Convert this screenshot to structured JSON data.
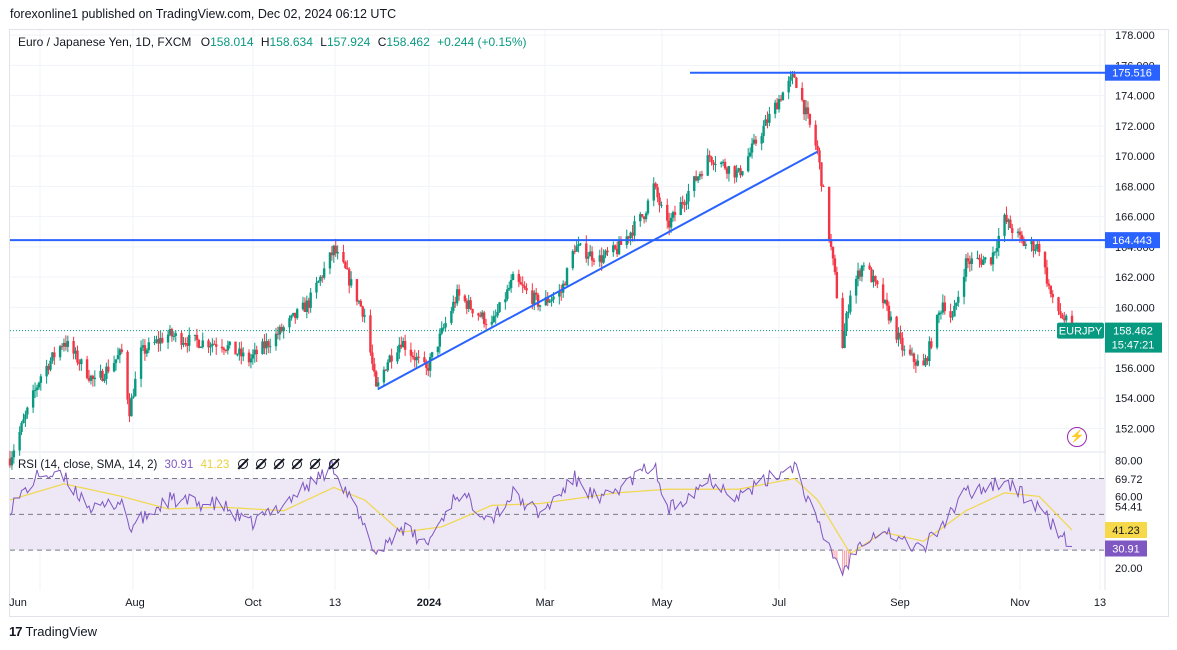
{
  "publisher": "forexonline1 published on TradingView.com, Dec 02, 2024 06:12 UTC",
  "legend": {
    "symbol": "Euro / Japanese Yen, 1D, FXCM",
    "o_label": "O",
    "o": "158.014",
    "h_label": "H",
    "h": "158.634",
    "l_label": "L",
    "l": "157.924",
    "c_label": "C",
    "c": "158.462",
    "change": "+0.244 (+0.15%)"
  },
  "rsi_legend": {
    "label": "RSI",
    "params": "14, close, SMA, 14, 2",
    "rsi": "30.91",
    "sma": "41.23"
  },
  "branding": "TradingView",
  "colors": {
    "up": "#089981",
    "down": "#f23645",
    "hline": "#2962ff",
    "rsi": "#7e57c2",
    "rsi_ma": "#f0d84a",
    "rsi_band": "#ede7f6"
  },
  "chart_data": {
    "type": "candlestick",
    "symbol_tag": "EURJPY",
    "price_axis": {
      "ticks": [
        "178.000",
        "176.000",
        "174.000",
        "172.000",
        "170.000",
        "168.000",
        "166.000",
        "164.000",
        "162.000",
        "160.000",
        "158.000",
        "156.000",
        "154.000",
        "152.000"
      ],
      "range": [
        150.5,
        179
      ]
    },
    "time_axis": [
      "Jun",
      "Aug",
      "Oct",
      "13",
      "2024",
      "Mar",
      "May",
      "Jul",
      "Sep",
      "Nov",
      "13"
    ],
    "horizontal_lines": [
      {
        "value": 175.516,
        "label": "175.516"
      },
      {
        "value": 164.443,
        "label": "164.443"
      }
    ],
    "trendline": [
      {
        "date": "2023-12-08",
        "value": 154.6
      },
      {
        "date": "2024-07-23",
        "value": 170.3
      }
    ],
    "last_price": {
      "value": 158.462,
      "label": "158.462",
      "countdown": "15:47:21"
    },
    "close_anchors": [
      {
        "date": "2023-05-31",
        "close": 150.0
      },
      {
        "date": "2023-06-16",
        "close": 155.5
      },
      {
        "date": "2023-06-28",
        "close": 157.8
      },
      {
        "date": "2023-07-14",
        "close": 155.0
      },
      {
        "date": "2023-07-28",
        "close": 157.0
      },
      {
        "date": "2023-08-01",
        "close": 153.2
      },
      {
        "date": "2023-08-07",
        "close": 157.0
      },
      {
        "date": "2023-08-21",
        "close": 158.2
      },
      {
        "date": "2023-09-01",
        "close": 157.8
      },
      {
        "date": "2023-09-18",
        "close": 157.6
      },
      {
        "date": "2023-10-02",
        "close": 156.5
      },
      {
        "date": "2023-10-20",
        "close": 158.6
      },
      {
        "date": "2023-11-02",
        "close": 160.3
      },
      {
        "date": "2023-11-15",
        "close": 163.8
      },
      {
        "date": "2023-11-21",
        "close": 162.4
      },
      {
        "date": "2023-12-01",
        "close": 159.5
      },
      {
        "date": "2023-12-07",
        "close": 154.5
      },
      {
        "date": "2023-12-13",
        "close": 156.5
      },
      {
        "date": "2023-12-20",
        "close": 157.8
      },
      {
        "date": "2024-01-02",
        "close": 155.8
      },
      {
        "date": "2024-01-10",
        "close": 158.3
      },
      {
        "date": "2024-01-18",
        "close": 160.8
      },
      {
        "date": "2024-02-05",
        "close": 158.8
      },
      {
        "date": "2024-02-16",
        "close": 161.8
      },
      {
        "date": "2024-03-01",
        "close": 160.2
      },
      {
        "date": "2024-03-12",
        "close": 161.0
      },
      {
        "date": "2024-03-19",
        "close": 164.0
      },
      {
        "date": "2024-04-01",
        "close": 163.2
      },
      {
        "date": "2024-04-10",
        "close": 163.8
      },
      {
        "date": "2024-04-24",
        "close": 166.2
      },
      {
        "date": "2024-04-29",
        "close": 168.0
      },
      {
        "date": "2024-05-06",
        "close": 165.3
      },
      {
        "date": "2024-05-28",
        "close": 170.0
      },
      {
        "date": "2024-06-12",
        "close": 168.8
      },
      {
        "date": "2024-07-04",
        "close": 174.0
      },
      {
        "date": "2024-07-11",
        "close": 175.3
      },
      {
        "date": "2024-07-23",
        "close": 170.3
      },
      {
        "date": "2024-08-01",
        "close": 162.0
      },
      {
        "date": "2024-08-05",
        "close": 157.5
      },
      {
        "date": "2024-08-09",
        "close": 161.0
      },
      {
        "date": "2024-08-16",
        "close": 163.0
      },
      {
        "date": "2024-08-26",
        "close": 160.4
      },
      {
        "date": "2024-09-06",
        "close": 157.0
      },
      {
        "date": "2024-09-16",
        "close": 156.0
      },
      {
        "date": "2024-09-26",
        "close": 160.4
      },
      {
        "date": "2024-10-01",
        "close": 159.2
      },
      {
        "date": "2024-10-08",
        "close": 163.0
      },
      {
        "date": "2024-10-21",
        "close": 163.2
      },
      {
        "date": "2024-10-28",
        "close": 165.8
      },
      {
        "date": "2024-11-07",
        "close": 164.2
      },
      {
        "date": "2024-11-15",
        "close": 164.0
      },
      {
        "date": "2024-11-22",
        "close": 160.3
      },
      {
        "date": "2024-12-02",
        "close": 158.46
      }
    ],
    "rsi_panel": {
      "ticks": [
        "80.00",
        "69.72",
        "60.00",
        "54.41",
        "41.23",
        "30.91",
        "20.00"
      ],
      "band": [
        30,
        70
      ],
      "middle": 50,
      "range": [
        15,
        82
      ],
      "last_rsi": 30.91,
      "last_sma": 41.23,
      "rsi_anchors": [
        {
          "date": "2023-05-31",
          "v": 54
        },
        {
          "date": "2023-06-16",
          "v": 73
        },
        {
          "date": "2023-06-28",
          "v": 70
        },
        {
          "date": "2023-07-14",
          "v": 52
        },
        {
          "date": "2023-07-28",
          "v": 58
        },
        {
          "date": "2023-08-01",
          "v": 42
        },
        {
          "date": "2023-08-21",
          "v": 58
        },
        {
          "date": "2023-09-18",
          "v": 55
        },
        {
          "date": "2023-10-02",
          "v": 44
        },
        {
          "date": "2023-10-20",
          "v": 56
        },
        {
          "date": "2023-11-15",
          "v": 77
        },
        {
          "date": "2023-11-21",
          "v": 64
        },
        {
          "date": "2023-12-07",
          "v": 28
        },
        {
          "date": "2023-12-20",
          "v": 43
        },
        {
          "date": "2024-01-02",
          "v": 33
        },
        {
          "date": "2024-01-18",
          "v": 62
        },
        {
          "date": "2024-02-05",
          "v": 48
        },
        {
          "date": "2024-02-16",
          "v": 61
        },
        {
          "date": "2024-03-01",
          "v": 50
        },
        {
          "date": "2024-03-19",
          "v": 70
        },
        {
          "date": "2024-04-01",
          "v": 57
        },
        {
          "date": "2024-04-29",
          "v": 78
        },
        {
          "date": "2024-05-06",
          "v": 52
        },
        {
          "date": "2024-05-28",
          "v": 70
        },
        {
          "date": "2024-06-12",
          "v": 60
        },
        {
          "date": "2024-07-11",
          "v": 78
        },
        {
          "date": "2024-07-23",
          "v": 44
        },
        {
          "date": "2024-08-05",
          "v": 18
        },
        {
          "date": "2024-08-16",
          "v": 37
        },
        {
          "date": "2024-08-26",
          "v": 42
        },
        {
          "date": "2024-09-06",
          "v": 34
        },
        {
          "date": "2024-09-16",
          "v": 31
        },
        {
          "date": "2024-10-08",
          "v": 62
        },
        {
          "date": "2024-10-28",
          "v": 69
        },
        {
          "date": "2024-11-15",
          "v": 53
        },
        {
          "date": "2024-12-02",
          "v": 30.91
        }
      ],
      "sma_anchors": [
        {
          "date": "2023-05-31",
          "v": 58
        },
        {
          "date": "2023-06-28",
          "v": 67
        },
        {
          "date": "2023-07-28",
          "v": 60
        },
        {
          "date": "2023-08-21",
          "v": 53
        },
        {
          "date": "2023-09-18",
          "v": 54
        },
        {
          "date": "2023-10-20",
          "v": 52
        },
        {
          "date": "2023-11-15",
          "v": 65
        },
        {
          "date": "2023-12-01",
          "v": 58
        },
        {
          "date": "2023-12-20",
          "v": 40
        },
        {
          "date": "2024-01-10",
          "v": 43
        },
        {
          "date": "2024-02-05",
          "v": 55
        },
        {
          "date": "2024-03-01",
          "v": 56
        },
        {
          "date": "2024-04-10",
          "v": 62
        },
        {
          "date": "2024-05-06",
          "v": 64
        },
        {
          "date": "2024-06-12",
          "v": 64
        },
        {
          "date": "2024-07-11",
          "v": 70
        },
        {
          "date": "2024-07-23",
          "v": 58
        },
        {
          "date": "2024-08-09",
          "v": 28
        },
        {
          "date": "2024-08-26",
          "v": 40
        },
        {
          "date": "2024-09-16",
          "v": 35
        },
        {
          "date": "2024-10-08",
          "v": 52
        },
        {
          "date": "2024-10-28",
          "v": 62
        },
        {
          "date": "2024-11-15",
          "v": 60
        },
        {
          "date": "2024-12-02",
          "v": 41.23
        }
      ]
    }
  }
}
